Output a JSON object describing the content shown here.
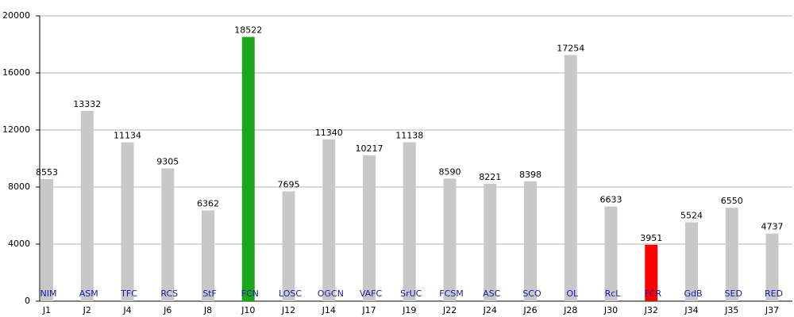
{
  "chart_data": {
    "type": "bar",
    "categories": [
      "J1",
      "J2",
      "J4",
      "J6",
      "J8",
      "J10",
      "J12",
      "J14",
      "J17",
      "J19",
      "J22",
      "J24",
      "J26",
      "J28",
      "J30",
      "J32",
      "J34",
      "J35",
      "J37"
    ],
    "teams": [
      "NIM",
      "ASM",
      "TFC",
      "RCS",
      "StF",
      "FCN",
      "LOSC",
      "OGCN",
      "VAFC",
      "SrUC",
      "FCSM",
      "ASC",
      "SCO",
      "OL",
      "RcL",
      "FCR",
      "GdB",
      "SED",
      "RED"
    ],
    "values": [
      8553,
      13332,
      11134,
      9305,
      6362,
      18522,
      7695,
      11340,
      10217,
      11138,
      8590,
      8221,
      8398,
      17254,
      6633,
      3951,
      5524,
      6550,
      4737
    ],
    "colors": [
      "#c8c8c8",
      "#c8c8c8",
      "#c8c8c8",
      "#c8c8c8",
      "#c8c8c8",
      "#1aa81a",
      "#c8c8c8",
      "#c8c8c8",
      "#c8c8c8",
      "#c8c8c8",
      "#c8c8c8",
      "#c8c8c8",
      "#c8c8c8",
      "#c8c8c8",
      "#c8c8c8",
      "#ff0000",
      "#c8c8c8",
      "#c8c8c8",
      "#c8c8c8"
    ],
    "ylim": [
      0,
      20000
    ],
    "yticks": [
      0,
      4000,
      8000,
      12000,
      16000,
      20000
    ],
    "grid": true
  }
}
